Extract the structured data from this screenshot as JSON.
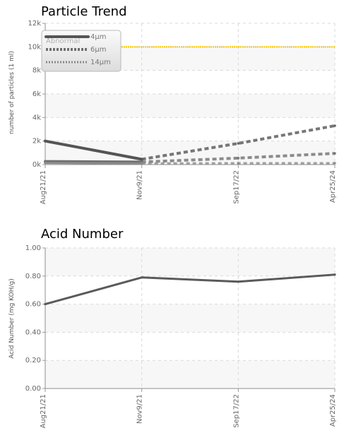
{
  "chart_data": [
    {
      "type": "line",
      "title": "Particle Trend",
      "xlabel": "",
      "ylabel": "number of particles (1 ml)",
      "categories": [
        "Aug21/21",
        "Nov9/21",
        "Sep17/22",
        "Apr25/24"
      ],
      "ylim": [
        0,
        12000
      ],
      "yticks": [
        {
          "value": 0,
          "label": "0k"
        },
        {
          "value": 2000,
          "label": "2k"
        },
        {
          "value": 4000,
          "label": "4k"
        },
        {
          "value": 6000,
          "label": "6k"
        },
        {
          "value": 8000,
          "label": "8k"
        },
        {
          "value": 10000,
          "label": "10k"
        },
        {
          "value": 12000,
          "label": "12k"
        }
      ],
      "grid": true,
      "legend_position": "top-left",
      "legend_title": "Abnormal",
      "threshold": {
        "value": 10000,
        "color": "#f3c400"
      },
      "series": [
        {
          "name": "4μm",
          "values": [
            2000,
            450,
            1800,
            3300
          ],
          "color": "#555555"
        },
        {
          "name": "6μm",
          "values": [
            260,
            220,
            550,
            950
          ],
          "color": "#6f6f6f"
        },
        {
          "name": "14μm",
          "values": [
            140,
            100,
            120,
            120
          ],
          "color": "#8a8a8a"
        }
      ]
    },
    {
      "type": "line",
      "title": "Acid Number",
      "xlabel": "",
      "ylabel": "Acid Number (mg KOH/g)",
      "categories": [
        "Aug21/21",
        "Nov9/21",
        "Sep17/22",
        "Apr25/24"
      ],
      "ylim": [
        0,
        1
      ],
      "yticks": [
        {
          "value": 0,
          "label": "0.00"
        },
        {
          "value": 0.2,
          "label": "0.20"
        },
        {
          "value": 0.4,
          "label": "0.40"
        },
        {
          "value": 0.6,
          "label": "0.60"
        },
        {
          "value": 0.8,
          "label": "0.80"
        },
        {
          "value": 1.0,
          "label": "1.00"
        }
      ],
      "grid": true,
      "series": [
        {
          "name": "",
          "values": [
            0.6,
            0.79,
            0.76,
            0.81
          ],
          "color": "#5a5a5a"
        }
      ]
    }
  ]
}
